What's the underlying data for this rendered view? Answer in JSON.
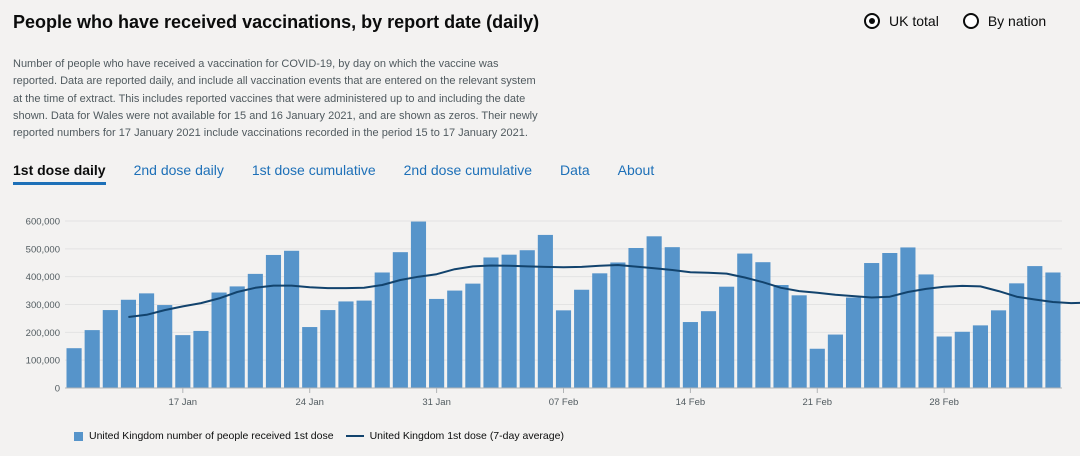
{
  "title": "People who have received vaccinations, by report date (daily)",
  "radios": [
    {
      "label": "UK total",
      "checked": true
    },
    {
      "label": "By nation",
      "checked": false
    }
  ],
  "description": "Number of people who have received a vaccination for COVID-19, by day on which the vaccine was reported. Data are reported daily, and include all vaccination events that are entered on the relevant system at the time of extract. This includes reported vaccines that were administered up to and including the date shown. Data for Wales were not available for 15 and 16 January 2021, and are shown as zeros. Their newly reported numbers for 17 January 2021 include vaccinations recorded in the period 15 to 17 January 2021.",
  "tabs": [
    "1st dose daily",
    "2nd dose daily",
    "1st dose cumulative",
    "2nd dose cumulative",
    "Data",
    "About"
  ],
  "active_tab": 0,
  "colors": {
    "bar": "#5694ca",
    "line": "#12436d",
    "grid": "#e3e3e3",
    "tick": "#505a5f"
  },
  "chart_data": {
    "type": "bar",
    "title": "People who have received vaccinations, by report date (daily)",
    "ylim": [
      0,
      600000
    ],
    "yticks": [
      0,
      100000,
      200000,
      300000,
      400000,
      500000,
      600000
    ],
    "ytick_labels": [
      "0",
      "100,000",
      "200,000",
      "300,000",
      "400,000",
      "500,000",
      "600,000"
    ],
    "xtick_labels": [
      {
        "index": 6,
        "label": "17 Jan"
      },
      {
        "index": 13,
        "label": "24 Jan"
      },
      {
        "index": 20,
        "label": "31 Jan"
      },
      {
        "index": 27,
        "label": "07 Feb"
      },
      {
        "index": 34,
        "label": "14 Feb"
      },
      {
        "index": 41,
        "label": "21 Feb"
      },
      {
        "index": 48,
        "label": "28 Feb"
      }
    ],
    "series": [
      {
        "name": "United Kingdom number of people received 1st dose",
        "kind": "bar",
        "values": [
          143000,
          208000,
          280000,
          317000,
          340000,
          298000,
          190000,
          205000,
          343000,
          365000,
          410000,
          478000,
          493000,
          219000,
          280000,
          311000,
          314000,
          415000,
          488000,
          598000,
          320000,
          350000,
          375000,
          469000,
          479000,
          495000,
          550000,
          279000,
          353000,
          412000,
          451000,
          503000,
          545000,
          506000,
          237000,
          276000,
          364000,
          483000,
          452000,
          370000,
          333000,
          141000,
          192000,
          325000,
          449000,
          485000,
          505000,
          408000,
          185000,
          202000,
          225000,
          279000,
          376000,
          438000,
          415000
        ]
      },
      {
        "name": "United Kingdom 1st dose (7-day average)",
        "kind": "line",
        "start_index": 3,
        "values": [
          255000,
          263000,
          280000,
          293000,
          305000,
          322000,
          345000,
          360000,
          368000,
          368000,
          362000,
          359000,
          359000,
          360000,
          370000,
          388000,
          400000,
          409000,
          427000,
          437000,
          440000,
          439000,
          437000,
          435000,
          434000,
          435000,
          439000,
          442000,
          436000,
          430000,
          424000,
          416000,
          414000,
          411000,
          397000,
          380000,
          360000,
          348000,
          342000,
          335000,
          330000,
          325000,
          328000,
          345000,
          356000,
          364000,
          367000,
          365000,
          348000,
          328000,
          318000,
          309000,
          305000,
          307000
        ]
      }
    ]
  }
}
